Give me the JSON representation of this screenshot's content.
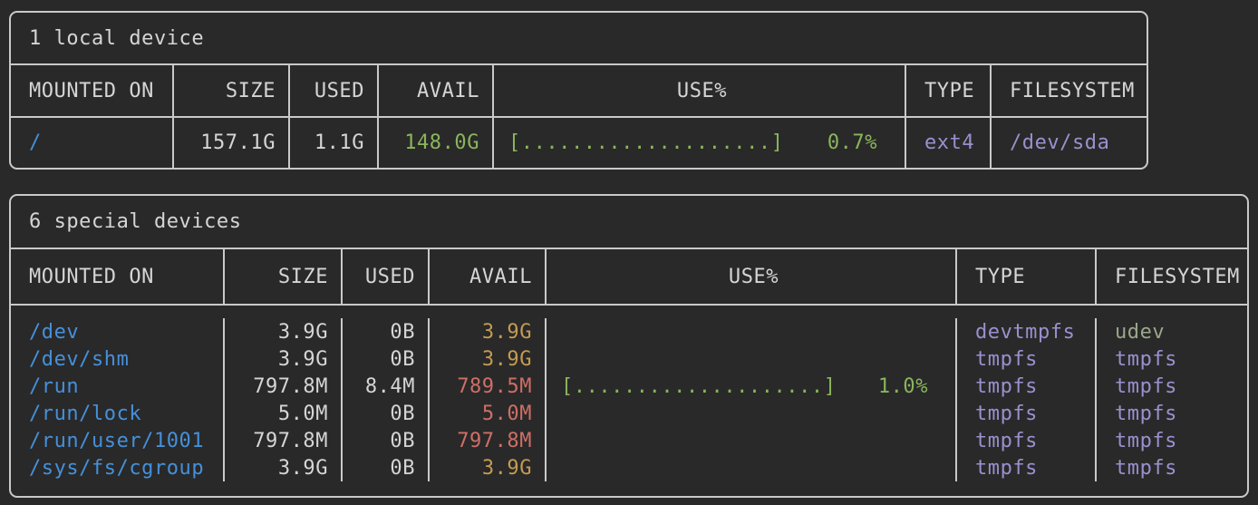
{
  "terminal": {
    "app": "duf disk usage output",
    "background": "#292929",
    "border_color": "#c9c9c9",
    "text_color": "#d5d5d5",
    "colors": {
      "mount": "#4590da",
      "ok": "#8ab55c",
      "warn": "#c49b52",
      "crit": "#ce6f66",
      "accent": "#9b90cf",
      "sage": "#9aa88a",
      "fg": "#d5d5d5",
      "border": "#c9c9c9",
      "bg": "#292929"
    }
  },
  "tables": [
    {
      "title": "1 local device",
      "headers": {
        "mounted_on": "MOUNTED ON",
        "size": "SIZE",
        "used": "USED",
        "avail": "AVAIL",
        "use_pct": "USE%",
        "type": "TYPE",
        "filesystem": "FILESYSTEM"
      },
      "rows": [
        {
          "mounted_on": "/",
          "size": "157.1G",
          "used": "1.1G",
          "avail": "148.0G",
          "bar": "[....................]",
          "pct": "0.7%",
          "type": "ext4",
          "filesystem": "/dev/sda"
        }
      ]
    },
    {
      "title": "6 special devices",
      "headers": {
        "mounted_on": "MOUNTED ON",
        "size": "SIZE",
        "used": "USED",
        "avail": "AVAIL",
        "use_pct": "USE%",
        "type": "TYPE",
        "filesystem": "FILESYSTEM"
      },
      "rows": [
        {
          "mounted_on": "/dev",
          "size": "3.9G",
          "used": "0B",
          "avail": "3.9G",
          "bar": "",
          "pct": "",
          "type": "devtmpfs",
          "filesystem": "udev"
        },
        {
          "mounted_on": "/dev/shm",
          "size": "3.9G",
          "used": "0B",
          "avail": "3.9G",
          "bar": "",
          "pct": "",
          "type": "tmpfs",
          "filesystem": "tmpfs"
        },
        {
          "mounted_on": "/run",
          "size": "797.8M",
          "used": "8.4M",
          "avail": "789.5M",
          "bar": "[....................]",
          "pct": "1.0%",
          "type": "tmpfs",
          "filesystem": "tmpfs"
        },
        {
          "mounted_on": "/run/lock",
          "size": "5.0M",
          "used": "0B",
          "avail": "5.0M",
          "bar": "",
          "pct": "",
          "type": "tmpfs",
          "filesystem": "tmpfs"
        },
        {
          "mounted_on": "/run/user/1001",
          "size": "797.8M",
          "used": "0B",
          "avail": "797.8M",
          "bar": "",
          "pct": "",
          "type": "tmpfs",
          "filesystem": "tmpfs"
        },
        {
          "mounted_on": "/sys/fs/cgroup",
          "size": "3.9G",
          "used": "0B",
          "avail": "3.9G",
          "bar": "",
          "pct": "",
          "type": "tmpfs",
          "filesystem": "tmpfs"
        }
      ]
    }
  ]
}
